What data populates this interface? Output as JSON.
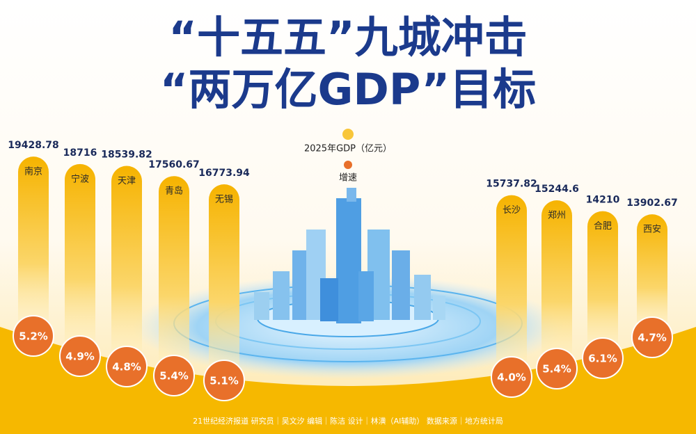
{
  "chart_data": {
    "type": "bar",
    "title_lines": [
      "“十五五”九城冲击",
      "“两万亿GDP”目标"
    ],
    "categories": [
      "南京",
      "宁波",
      "天津",
      "青岛",
      "无锡",
      "长沙",
      "郑州",
      "合肥",
      "西安"
    ],
    "series": [
      {
        "name": "2025年GDP（亿元）",
        "color": "#f5b400",
        "values": [
          19428.78,
          18716,
          18539.82,
          17560.67,
          16773.94,
          15737.82,
          15244.6,
          14210,
          13902.67
        ]
      },
      {
        "name": "增速",
        "color": "#e8702a",
        "values": [
          5.2,
          4.9,
          4.8,
          5.4,
          5.1,
          4.0,
          5.4,
          6.1,
          4.7
        ],
        "value_labels": [
          "5.2%",
          "4.9%",
          "4.8%",
          "5.4%",
          "5.1%",
          "4.0%",
          "5.4%",
          "6.1%",
          "4.7%"
        ]
      }
    ],
    "credits": "21世纪经济报道  研究员｜吴文汐   编辑｜陈洁   设计｜林潢（AI辅助）   数据来源｜地方统计局"
  }
}
